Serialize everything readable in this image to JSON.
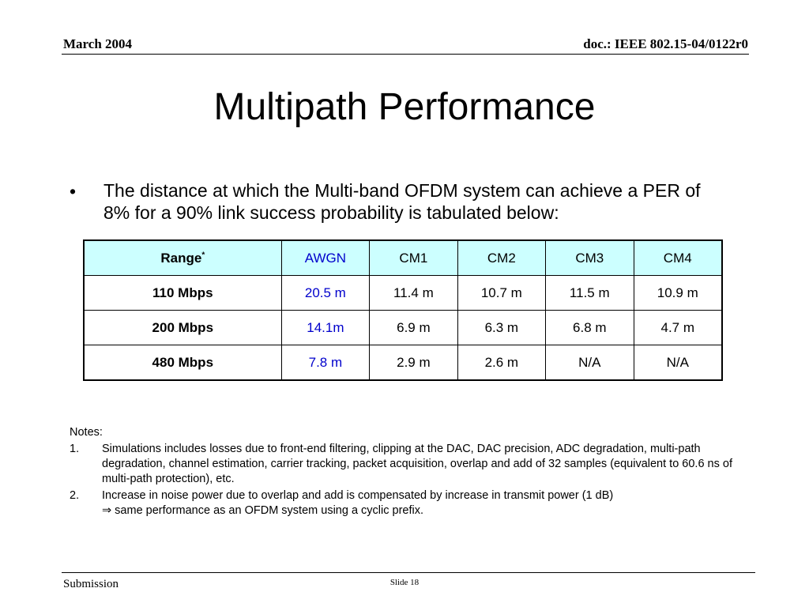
{
  "header": {
    "date": "March 2004",
    "doc": "doc.: IEEE 802.15-04/0122r0"
  },
  "title": "Multipath Performance",
  "bullet": {
    "symbol": "•",
    "text": "The distance at which the Multi-band OFDM system can achieve a PER of 8% for a 90% link success probability is tabulated below:"
  },
  "table": {
    "header": {
      "range_label": "Range",
      "range_mark": "*",
      "cols": [
        "AWGN",
        "CM1",
        "CM2",
        "CM3",
        "CM4"
      ]
    },
    "rows": [
      {
        "label": "110 Mbps",
        "cells": [
          "20.5 m",
          "11.4 m",
          "10.7 m",
          "11.5 m",
          "10.9 m"
        ]
      },
      {
        "label": "200 Mbps",
        "cells": [
          "14.1m",
          "6.9 m",
          "6.3 m",
          "6.8 m",
          "4.7 m"
        ]
      },
      {
        "label": "480 Mbps",
        "cells": [
          "7.8 m",
          "2.9 m",
          "2.6 m",
          "N/A",
          "N/A"
        ]
      }
    ],
    "colors": {
      "header_bg": "#ccffff",
      "awgn_text": "#0000cc"
    }
  },
  "notes": {
    "title": "Notes:",
    "items": [
      {
        "num": "1.",
        "text": "Simulations includes losses due to front-end filtering, clipping at the DAC, DAC precision, ADC degradation, multi-path degradation, channel estimation, carrier tracking, packet acquisition, overlap and add of 32 samples (equivalent to 60.6 ns of multi-path protection), etc."
      },
      {
        "num": "2.",
        "text": "Increase in noise power due to overlap and add is compensated by increase in transmit power (1 dB)",
        "line2": "⇒ same performance as an OFDM system using a cyclic prefix."
      }
    ]
  },
  "footer": {
    "left": "Submission",
    "slide": "Slide 18"
  }
}
